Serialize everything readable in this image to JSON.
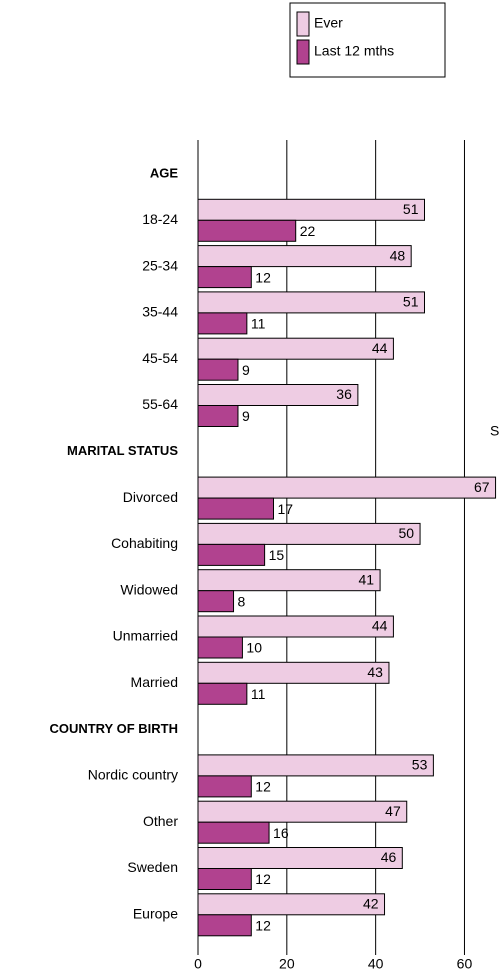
{
  "chart_data": {
    "type": "bar",
    "orientation": "horizontal",
    "categories": [
      "AGE",
      "18-24",
      "25-34",
      "35-44",
      "45-54",
      "55-64",
      "MARITAL STATUS",
      "Divorced",
      "Cohabiting",
      "Widowed",
      "Unmarried",
      "Married",
      "COUNTRY OF BIRTH",
      "Nordic country",
      "Other",
      "Sweden",
      "Europe"
    ],
    "series": [
      {
        "name": "Ever",
        "color": "#eecce3",
        "values": [
          null,
          51,
          48,
          51,
          44,
          36,
          null,
          67,
          50,
          41,
          44,
          43,
          null,
          53,
          47,
          46,
          42
        ]
      },
      {
        "name": "Last 12 mths",
        "color": "#b1428f",
        "values": [
          null,
          22,
          12,
          11,
          9,
          9,
          null,
          17,
          15,
          8,
          10,
          11,
          null,
          12,
          16,
          12,
          12
        ]
      }
    ],
    "xlim": [
      0,
      68
    ],
    "xticks": [
      0,
      20,
      40,
      60
    ],
    "grid": true,
    "annotations": [
      "S"
    ]
  }
}
